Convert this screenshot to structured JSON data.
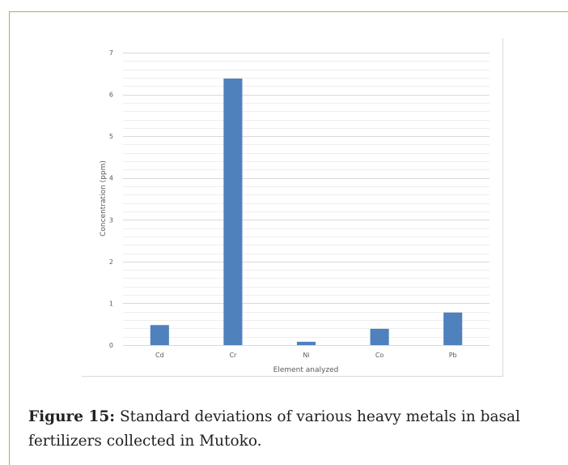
{
  "chart_data": {
    "type": "bar",
    "categories": [
      "Cd",
      "Cr",
      "Ni",
      "Co",
      "Pb"
    ],
    "values": [
      0.48,
      6.38,
      0.08,
      0.39,
      0.78
    ],
    "xlabel": "Element analyzed",
    "ylabel": "Concentration (ppm)",
    "ylim": [
      0,
      7
    ],
    "yticks": [
      0,
      1,
      2,
      3,
      4,
      5,
      6,
      7
    ],
    "grid": true,
    "bar_color": "#4f81bd",
    "grid_color": "#d9d9d9"
  },
  "caption": {
    "label": "Figure 15:",
    "text": " Standard deviations of various heavy metals in basal fertilizers collected in Mutoko."
  }
}
